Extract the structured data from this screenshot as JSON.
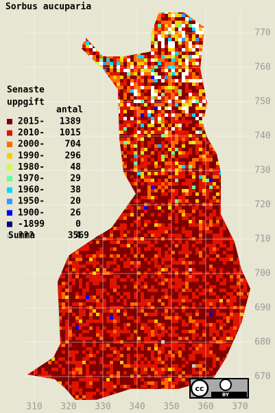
{
  "title": "Sorbus aucuparia",
  "legend": {
    "heading": [
      "Senaste",
      "uppgift"
    ],
    "count_header": "antal",
    "entries": [
      {
        "label": "2015-",
        "count": 1389,
        "color": "#800000"
      },
      {
        "label": "2010-",
        "count": 1015,
        "color": "#e01400"
      },
      {
        "label": "2000-",
        "count": 704,
        "color": "#ff6a00"
      },
      {
        "label": "1990-",
        "count": 296,
        "color": "#ffcc00"
      },
      {
        "label": "1980-",
        "count": 48,
        "color": "#ccff33"
      },
      {
        "label": "1970-",
        "count": 29,
        "color": "#66ff99"
      },
      {
        "label": "1960-",
        "count": 38,
        "color": "#00d8ff"
      },
      {
        "label": "1950-",
        "count": 20,
        "color": "#3399ff"
      },
      {
        "label": "1900-",
        "count": 26,
        "color": "#0000ff"
      },
      {
        "label": "-1899",
        "count": 0,
        "color": "#000080"
      },
      {
        "label": "???",
        "count": 4,
        "color": "#c8c8c8"
      }
    ],
    "total": {
      "label": "Summa",
      "count": 3569
    }
  },
  "x_ticks": [
    310,
    320,
    330,
    340,
    350,
    360,
    370
  ],
  "y_ticks": [
    670,
    680,
    690,
    700,
    710,
    720,
    730,
    740,
    750,
    760,
    770
  ],
  "badge": {
    "logo": "cc",
    "label": "BY"
  }
}
